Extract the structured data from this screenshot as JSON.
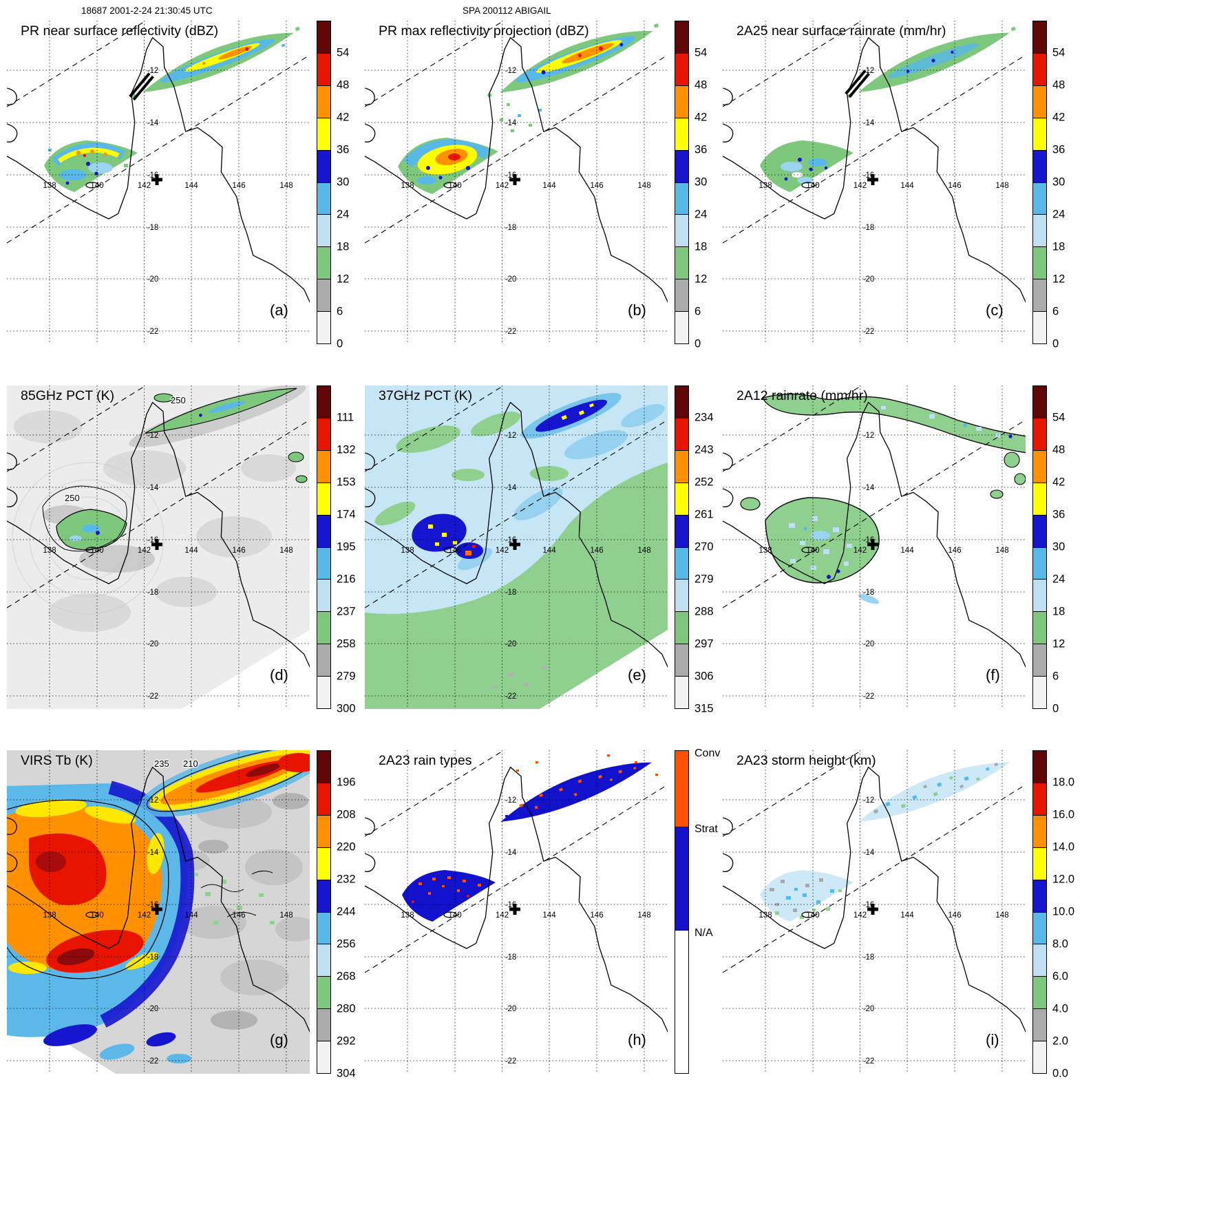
{
  "header": {
    "orbit_title": "18687 2001-2-24 21:30:45 UTC",
    "storm_title": "SPA 200112 ABIGAIL"
  },
  "map": {
    "lon_labels": [
      "138",
      "140",
      "142",
      "144",
      "146",
      "148"
    ],
    "lat_labels": [
      "-12",
      "-14",
      "-16",
      "-18",
      "-20",
      "-22"
    ]
  },
  "colors": {
    "rainbow_top_to_bottom": [
      "#600606",
      "#e81400",
      "#ff9000",
      "#ffff00",
      "#1616d0",
      "#58b8e8",
      "#bfe0f2",
      "#7dc87d",
      "#aaaaaa",
      "#f2f2f2"
    ],
    "convective": "#ff4f00",
    "stratiform": "#1212cc"
  },
  "panels": [
    {
      "id": "a",
      "title": "PR near surface reflectivity (dBZ)",
      "corner_label": "(a)",
      "colorbar": {
        "colors": [
          "#600606",
          "#e81400",
          "#ff9000",
          "#ffff00",
          "#1616d0",
          "#58b8e8",
          "#bfe0f2",
          "#7dc87d",
          "#aaaaaa",
          "#f2f2f2"
        ],
        "ticks": [
          "54",
          "48",
          "42",
          "36",
          "30",
          "24",
          "18",
          "12",
          "6",
          "0"
        ]
      }
    },
    {
      "id": "b",
      "title": "PR max reflectivity projection (dBZ)",
      "corner_label": "(b)",
      "colorbar": {
        "colors": [
          "#600606",
          "#e81400",
          "#ff9000",
          "#ffff00",
          "#1616d0",
          "#58b8e8",
          "#bfe0f2",
          "#7dc87d",
          "#aaaaaa",
          "#f2f2f2"
        ],
        "ticks": [
          "54",
          "48",
          "42",
          "36",
          "30",
          "24",
          "18",
          "12",
          "6",
          "0"
        ]
      }
    },
    {
      "id": "c",
      "title": "2A25 near surface rainrate (mm/hr)",
      "corner_label": "(c)",
      "colorbar": {
        "colors": [
          "#600606",
          "#e81400",
          "#ff9000",
          "#ffff00",
          "#1616d0",
          "#58b8e8",
          "#bfe0f2",
          "#7dc87d",
          "#aaaaaa",
          "#f2f2f2"
        ],
        "ticks": [
          "54",
          "48",
          "42",
          "36",
          "30",
          "24",
          "18",
          "12",
          "6",
          "0"
        ]
      }
    },
    {
      "id": "d",
      "title": "85GHz PCT (K)",
      "corner_label": "(d)",
      "contour_labels": [
        "250",
        "250"
      ],
      "colorbar": {
        "colors": [
          "#600606",
          "#e81400",
          "#ff9000",
          "#ffff00",
          "#1616d0",
          "#58b8e8",
          "#bfe0f2",
          "#7dc87d",
          "#aaaaaa",
          "#f2f2f2"
        ],
        "ticks": [
          "111",
          "132",
          "153",
          "174",
          "195",
          "216",
          "237",
          "258",
          "279",
          "300"
        ]
      }
    },
    {
      "id": "e",
      "title": "37GHz PCT (K)",
      "corner_label": "(e)",
      "colorbar": {
        "colors": [
          "#600606",
          "#e81400",
          "#ff9000",
          "#ffff00",
          "#1616d0",
          "#58b8e8",
          "#bfe0f2",
          "#7dc87d",
          "#aaaaaa",
          "#f2f2f2"
        ],
        "ticks": [
          "234",
          "243",
          "252",
          "261",
          "270",
          "279",
          "288",
          "297",
          "306",
          "315"
        ]
      }
    },
    {
      "id": "f",
      "title": "2A12 rainrate (mm/hr)",
      "corner_label": "(f)",
      "colorbar": {
        "colors": [
          "#600606",
          "#e81400",
          "#ff9000",
          "#ffff00",
          "#1616d0",
          "#58b8e8",
          "#bfe0f2",
          "#7dc87d",
          "#aaaaaa",
          "#f2f2f2"
        ],
        "ticks": [
          "54",
          "48",
          "42",
          "36",
          "30",
          "24",
          "18",
          "12",
          "6",
          "0"
        ]
      }
    },
    {
      "id": "g",
      "title": "VIRS Tb (K)",
      "corner_label": "(g)",
      "contour_labels": [
        "235",
        "210"
      ],
      "colorbar": {
        "colors": [
          "#600606",
          "#e81400",
          "#ff9000",
          "#ffff00",
          "#1616d0",
          "#58b8e8",
          "#bfe0f2",
          "#7dc87d",
          "#aaaaaa",
          "#f2f2f2"
        ],
        "ticks": [
          "196",
          "208",
          "220",
          "232",
          "244",
          "256",
          "268",
          "280",
          "292",
          "304"
        ]
      }
    },
    {
      "id": "h",
      "title": "2A23 rain types",
      "corner_label": "(h)",
      "colorbar": {
        "segments": [
          {
            "label": "Conv",
            "color": "#ff4f00",
            "frac": 0.235
          },
          {
            "label": "Strat",
            "color": "#1212cc",
            "frac": 0.32
          },
          {
            "label": "N/A",
            "color": "#ffffff",
            "frac": 0.445
          }
        ]
      }
    },
    {
      "id": "i",
      "title": "2A23 storm height (km)",
      "corner_label": "(i)",
      "colorbar": {
        "colors": [
          "#600606",
          "#e81400",
          "#ff9000",
          "#ffff00",
          "#1616d0",
          "#58b8e8",
          "#bfe0f2",
          "#7dc87d",
          "#aaaaaa",
          "#f2f2f2"
        ],
        "ticks": [
          "18.0",
          "16.0",
          "14.0",
          "12.0",
          "10.0",
          "8.0",
          "6.0",
          "4.0",
          "2.0",
          "0.0"
        ]
      }
    }
  ],
  "chart_data": {
    "type": "heatmap",
    "title": "TRMM overpass 18687 2001-2-24 21:30:45 UTC — SPA 200112 ABIGAIL",
    "layout": "3x3 map panels over Cape York Peninsula / Gulf of Carpentaria, Australia",
    "lon_gridlines": [
      138,
      140,
      142,
      144,
      146,
      148
    ],
    "lat_gridlines": [
      -12,
      -14,
      -16,
      -18,
      -20,
      -22
    ],
    "panels": [
      {
        "label": "(a)",
        "title": "PR near surface reflectivity (dBZ)",
        "scale_ticks": [
          0,
          6,
          12,
          18,
          24,
          30,
          36,
          42,
          48,
          54
        ]
      },
      {
        "label": "(b)",
        "title": "PR max reflectivity projection (dBZ)",
        "scale_ticks": [
          0,
          6,
          12,
          18,
          24,
          30,
          36,
          42,
          48,
          54
        ]
      },
      {
        "label": "(c)",
        "title": "2A25 near surface rainrate (mm/hr)",
        "scale_ticks": [
          0,
          6,
          12,
          18,
          24,
          30,
          36,
          42,
          48,
          54
        ]
      },
      {
        "label": "(d)",
        "title": "85GHz PCT (K)",
        "scale_ticks": [
          111,
          132,
          153,
          174,
          195,
          216,
          237,
          258,
          279,
          300
        ],
        "contours": [
          250
        ]
      },
      {
        "label": "(e)",
        "title": "37GHz PCT (K)",
        "scale_ticks": [
          234,
          243,
          252,
          261,
          270,
          279,
          288,
          297,
          306,
          315
        ]
      },
      {
        "label": "(f)",
        "title": "2A12 rainrate (mm/hr)",
        "scale_ticks": [
          0,
          6,
          12,
          18,
          24,
          30,
          36,
          42,
          48,
          54
        ]
      },
      {
        "label": "(g)",
        "title": "VIRS Tb (K)",
        "scale_ticks": [
          196,
          208,
          220,
          232,
          244,
          256,
          268,
          280,
          292,
          304
        ],
        "contours": [
          235,
          210
        ]
      },
      {
        "label": "(h)",
        "title": "2A23 rain types",
        "categories": [
          "Conv",
          "Strat",
          "N/A"
        ]
      },
      {
        "label": "(i)",
        "title": "2A23 storm height (km)",
        "scale_ticks": [
          0,
          2,
          4,
          6,
          8,
          10,
          12,
          14,
          16,
          18
        ]
      }
    ],
    "features": [
      "Elongated convective/stratiform rain band northeast of Cape York near 144-147E, 11-12S, aligned with satellite track",
      "Storm cluster over the Gulf of Carpentaria near 139-141E, 14-15.5S clipped by the PR swath edge",
      "Dashed lines mark the satellite swath edges; bold cross marker near 142.6E, 16.1S"
    ]
  }
}
